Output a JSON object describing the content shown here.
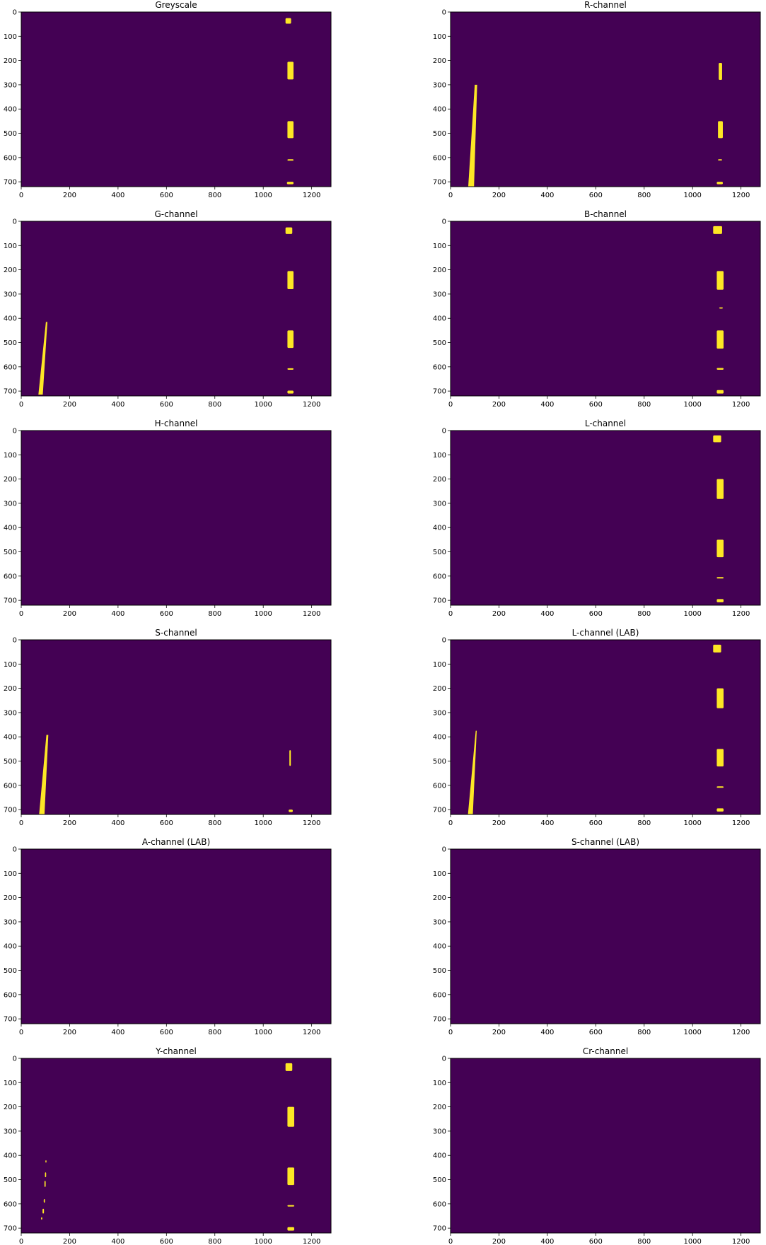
{
  "figure": {
    "background": "#ffffff",
    "mask_background_color": "#440154",
    "mask_foreground_color": "#fde725"
  },
  "chart_data": [
    {
      "type": "heatmap",
      "title": "Greyscale",
      "xlim": [
        0,
        1280
      ],
      "ylim": [
        720,
        0
      ],
      "xticks": [
        0,
        200,
        400,
        600,
        800,
        1000,
        1200
      ],
      "yticks": [
        0,
        100,
        200,
        300,
        400,
        500,
        600,
        700
      ],
      "grid": false,
      "blobs": [
        {
          "kind": "rect",
          "x0": 1092,
          "x1": 1115,
          "y0": 25,
          "y1": 48
        },
        {
          "kind": "rect",
          "x0": 1100,
          "x1": 1125,
          "y0": 205,
          "y1": 278
        },
        {
          "kind": "rect",
          "x0": 1100,
          "x1": 1125,
          "y0": 450,
          "y1": 520
        },
        {
          "kind": "rect",
          "x0": 1100,
          "x1": 1125,
          "y0": 607,
          "y1": 613
        },
        {
          "kind": "rect",
          "x0": 1098,
          "x1": 1125,
          "y0": 700,
          "y1": 710
        }
      ]
    },
    {
      "type": "heatmap",
      "title": "R-channel",
      "xlim": [
        0,
        1280
      ],
      "ylim": [
        720,
        0
      ],
      "xticks": [
        0,
        200,
        400,
        600,
        800,
        1000,
        1200
      ],
      "yticks": [
        0,
        100,
        200,
        300,
        400,
        500,
        600,
        700
      ],
      "grid": false,
      "blobs": [
        {
          "kind": "lane",
          "x_top": 105,
          "x_bottom": 85,
          "y0": 300,
          "y1": 720,
          "w_top": 10,
          "w_bottom": 24
        },
        {
          "kind": "rect",
          "x0": 1108,
          "x1": 1122,
          "y0": 210,
          "y1": 280
        },
        {
          "kind": "rect",
          "x0": 1105,
          "x1": 1125,
          "y0": 450,
          "y1": 520
        },
        {
          "kind": "rect",
          "x0": 1105,
          "x1": 1122,
          "y0": 607,
          "y1": 612
        },
        {
          "kind": "rect",
          "x0": 1100,
          "x1": 1125,
          "y0": 700,
          "y1": 710
        }
      ]
    },
    {
      "type": "heatmap",
      "title": "G-channel",
      "xlim": [
        0,
        1280
      ],
      "ylim": [
        720,
        0
      ],
      "xticks": [
        0,
        200,
        400,
        600,
        800,
        1000,
        1200
      ],
      "yticks": [
        0,
        100,
        200,
        300,
        400,
        500,
        600,
        700
      ],
      "grid": false,
      "blobs": [
        {
          "kind": "rect",
          "x0": 1092,
          "x1": 1120,
          "y0": 25,
          "y1": 52
        },
        {
          "kind": "lane",
          "x_top": 105,
          "x_bottom": 80,
          "y0": 415,
          "y1": 715,
          "w_top": 6,
          "w_bottom": 18
        },
        {
          "kind": "rect",
          "x0": 1100,
          "x1": 1125,
          "y0": 205,
          "y1": 280
        },
        {
          "kind": "rect",
          "x0": 1100,
          "x1": 1125,
          "y0": 450,
          "y1": 522
        },
        {
          "kind": "rect",
          "x0": 1100,
          "x1": 1125,
          "y0": 606,
          "y1": 612
        },
        {
          "kind": "rect",
          "x0": 1100,
          "x1": 1125,
          "y0": 698,
          "y1": 710
        }
      ]
    },
    {
      "type": "heatmap",
      "title": "B-channel",
      "xlim": [
        0,
        1280
      ],
      "ylim": [
        720,
        0
      ],
      "xticks": [
        0,
        200,
        400,
        600,
        800,
        1000,
        1200
      ],
      "yticks": [
        0,
        100,
        200,
        300,
        400,
        500,
        600,
        700
      ],
      "grid": false,
      "blobs": [
        {
          "kind": "rect",
          "x0": 1085,
          "x1": 1122,
          "y0": 20,
          "y1": 52
        },
        {
          "kind": "rect",
          "x0": 1100,
          "x1": 1128,
          "y0": 205,
          "y1": 282
        },
        {
          "kind": "rect",
          "x0": 1110,
          "x1": 1125,
          "y0": 355,
          "y1": 360
        },
        {
          "kind": "rect",
          "x0": 1100,
          "x1": 1128,
          "y0": 450,
          "y1": 525
        },
        {
          "kind": "rect",
          "x0": 1100,
          "x1": 1128,
          "y0": 605,
          "y1": 612
        },
        {
          "kind": "rect",
          "x0": 1100,
          "x1": 1128,
          "y0": 696,
          "y1": 710
        }
      ]
    },
    {
      "type": "heatmap",
      "title": "H-channel",
      "xlim": [
        0,
        1280
      ],
      "ylim": [
        720,
        0
      ],
      "xticks": [
        0,
        200,
        400,
        600,
        800,
        1000,
        1200
      ],
      "yticks": [
        0,
        100,
        200,
        300,
        400,
        500,
        600,
        700
      ],
      "grid": false,
      "blobs": []
    },
    {
      "type": "heatmap",
      "title": "L-channel",
      "xlim": [
        0,
        1280
      ],
      "ylim": [
        720,
        0
      ],
      "xticks": [
        0,
        200,
        400,
        600,
        800,
        1000,
        1200
      ],
      "yticks": [
        0,
        100,
        200,
        300,
        400,
        500,
        600,
        700
      ],
      "grid": false,
      "blobs": [
        {
          "kind": "rect",
          "x0": 1085,
          "x1": 1118,
          "y0": 20,
          "y1": 48
        },
        {
          "kind": "rect",
          "x0": 1100,
          "x1": 1128,
          "y0": 200,
          "y1": 282
        },
        {
          "kind": "rect",
          "x0": 1100,
          "x1": 1128,
          "y0": 450,
          "y1": 522
        },
        {
          "kind": "rect",
          "x0": 1100,
          "x1": 1128,
          "y0": 604,
          "y1": 610
        },
        {
          "kind": "rect",
          "x0": 1100,
          "x1": 1128,
          "y0": 695,
          "y1": 708
        }
      ]
    },
    {
      "type": "heatmap",
      "title": "S-channel",
      "xlim": [
        0,
        1280
      ],
      "ylim": [
        720,
        0
      ],
      "xticks": [
        0,
        200,
        400,
        600,
        800,
        1000,
        1200
      ],
      "yticks": [
        0,
        100,
        200,
        300,
        400,
        500,
        600,
        700
      ],
      "grid": false,
      "blobs": [
        {
          "kind": "lane",
          "x_top": 108,
          "x_bottom": 85,
          "y0": 392,
          "y1": 720,
          "w_top": 8,
          "w_bottom": 22
        },
        {
          "kind": "rect",
          "x0": 1108,
          "x1": 1114,
          "y0": 455,
          "y1": 520
        },
        {
          "kind": "rect",
          "x0": 1105,
          "x1": 1122,
          "y0": 700,
          "y1": 710
        }
      ]
    },
    {
      "type": "heatmap",
      "title": "L-channel (LAB)",
      "xlim": [
        0,
        1280
      ],
      "ylim": [
        720,
        0
      ],
      "xticks": [
        0,
        200,
        400,
        600,
        800,
        1000,
        1200
      ],
      "yticks": [
        0,
        100,
        200,
        300,
        400,
        500,
        600,
        700
      ],
      "grid": false,
      "blobs": [
        {
          "kind": "rect",
          "x0": 1085,
          "x1": 1118,
          "y0": 20,
          "y1": 52
        },
        {
          "kind": "lane",
          "x_top": 106,
          "x_bottom": 82,
          "y0": 375,
          "y1": 720,
          "w_top": 4,
          "w_bottom": 20
        },
        {
          "kind": "rect",
          "x0": 1100,
          "x1": 1128,
          "y0": 200,
          "y1": 282
        },
        {
          "kind": "rect",
          "x0": 1100,
          "x1": 1128,
          "y0": 450,
          "y1": 522
        },
        {
          "kind": "rect",
          "x0": 1100,
          "x1": 1128,
          "y0": 604,
          "y1": 610
        },
        {
          "kind": "rect",
          "x0": 1100,
          "x1": 1128,
          "y0": 695,
          "y1": 708
        }
      ]
    },
    {
      "type": "heatmap",
      "title": "A-channel (LAB)",
      "xlim": [
        0,
        1280
      ],
      "ylim": [
        720,
        0
      ],
      "xticks": [
        0,
        200,
        400,
        600,
        800,
        1000,
        1200
      ],
      "yticks": [
        0,
        100,
        200,
        300,
        400,
        500,
        600,
        700
      ],
      "grid": false,
      "blobs": []
    },
    {
      "type": "heatmap",
      "title": "S-channel (LAB)",
      "xlim": [
        0,
        1280
      ],
      "ylim": [
        720,
        0
      ],
      "xticks": [
        0,
        200,
        400,
        600,
        800,
        1000,
        1200
      ],
      "yticks": [
        0,
        100,
        200,
        300,
        400,
        500,
        600,
        700
      ],
      "grid": false,
      "blobs": []
    },
    {
      "type": "heatmap",
      "title": "Y-channel",
      "xlim": [
        0,
        1280
      ],
      "ylim": [
        720,
        0
      ],
      "xticks": [
        0,
        200,
        400,
        600,
        800,
        1000,
        1200
      ],
      "yticks": [
        0,
        100,
        200,
        300,
        400,
        500,
        600,
        700
      ],
      "grid": false,
      "blobs": [
        {
          "kind": "rect",
          "x0": 1092,
          "x1": 1120,
          "y0": 20,
          "y1": 52
        },
        {
          "kind": "rect",
          "x0": 1100,
          "x1": 1128,
          "y0": 200,
          "y1": 282
        },
        {
          "kind": "rect",
          "x0": 1100,
          "x1": 1128,
          "y0": 450,
          "y1": 522
        },
        {
          "kind": "rect",
          "x0": 1100,
          "x1": 1128,
          "y0": 605,
          "y1": 611
        },
        {
          "kind": "rect",
          "x0": 1100,
          "x1": 1128,
          "y0": 696,
          "y1": 710
        },
        {
          "kind": "rect",
          "x0": 100,
          "x1": 104,
          "y0": 420,
          "y1": 430
        },
        {
          "kind": "rect",
          "x0": 98,
          "x1": 103,
          "y0": 470,
          "y1": 490
        },
        {
          "kind": "rect",
          "x0": 96,
          "x1": 101,
          "y0": 505,
          "y1": 530
        },
        {
          "kind": "rect",
          "x0": 93,
          "x1": 98,
          "y0": 580,
          "y1": 595
        },
        {
          "kind": "rect",
          "x0": 88,
          "x1": 94,
          "y0": 620,
          "y1": 640
        },
        {
          "kind": "rect",
          "x0": 82,
          "x1": 87,
          "y0": 655,
          "y1": 665
        }
      ]
    },
    {
      "type": "heatmap",
      "title": "Cr-channel",
      "xlim": [
        0,
        1280
      ],
      "ylim": [
        720,
        0
      ],
      "xticks": [
        0,
        200,
        400,
        600,
        800,
        1000,
        1200
      ],
      "yticks": [
        0,
        100,
        200,
        300,
        400,
        500,
        600,
        700
      ],
      "grid": false,
      "blobs": []
    }
  ]
}
